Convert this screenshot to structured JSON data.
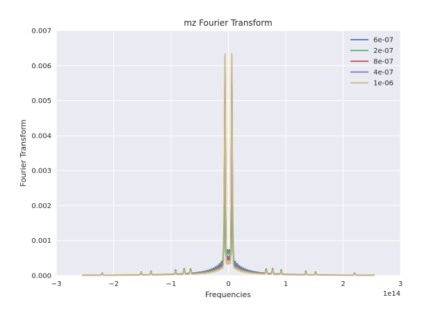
{
  "chart_data": {
    "type": "line",
    "title": "mz Fourier Transform",
    "xlabel": "Frequencies",
    "ylabel": "Fourier Transform",
    "x_offset_text": "1e14",
    "xlim": [
      -3,
      3
    ],
    "ylim": [
      0,
      0.007
    ],
    "x_ticks": [
      -3,
      -2,
      -1,
      0,
      1,
      2,
      3
    ],
    "x_tick_labels": [
      "−3",
      "−2",
      "−1",
      "0",
      "1",
      "2",
      "3"
    ],
    "y_ticks": [
      0,
      0.001,
      0.002,
      0.003,
      0.004,
      0.005,
      0.006,
      0.007
    ],
    "y_tick_labels": [
      "0.000",
      "0.001",
      "0.002",
      "0.003",
      "0.004",
      "0.005",
      "0.006",
      "0.007"
    ],
    "grid": true,
    "legend_position": "top-right",
    "background_color": "#EAEAF2",
    "series": [
      {
        "name": "6e-07",
        "color": "#4C72B0",
        "peak": 0.0053,
        "peak_x": 0.06,
        "base": 0.0006,
        "decay": 0.1,
        "spur": 0.00015
      },
      {
        "name": "2e-07",
        "color": "#55A868",
        "peak": 0.0021,
        "peak_x": 0.07,
        "base": 0.00058,
        "decay": 0.09,
        "spur": 0.00017
      },
      {
        "name": "8e-07",
        "color": "#C44E52",
        "peak": 0.0058,
        "peak_x": 0.06,
        "base": 0.0004,
        "decay": 0.12,
        "spur": 0.00012
      },
      {
        "name": "4e-07",
        "color": "#8172B2",
        "peak": 0.005,
        "peak_x": 0.06,
        "base": 0.00045,
        "decay": 0.11,
        "spur": 0.00014
      },
      {
        "name": "1e-06",
        "color": "#CCB974",
        "peak": 0.00615,
        "peak_x": 0.06,
        "base": 0.0003,
        "decay": 0.13,
        "spur": 0.00013
      }
    ],
    "x_data_range": [
      -2.55,
      2.55
    ]
  }
}
